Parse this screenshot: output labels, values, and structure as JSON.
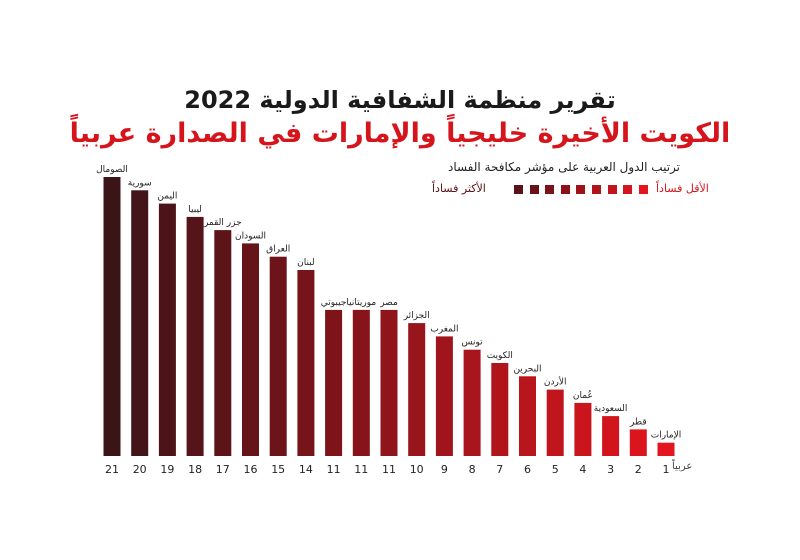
{
  "header": {
    "title_line1": "تقرير منظمة الشفافية الدولية 2022",
    "title_line2": "الكويت الأخيرة خليجياً والإمارات في الصدارة عربياً"
  },
  "legend": {
    "title": "ترتيب الدول العربية على مؤشر مكافحة الفساد",
    "most_corrupt": "الأكثر فساداً",
    "least_corrupt": "الأقل فساداً",
    "swatch_colors": [
      "#5a1118",
      "#6a1118",
      "#7a1218",
      "#8c1219",
      "#9e131a",
      "#b0141b",
      "#c2141c",
      "#d3151d",
      "#e3161e"
    ]
  },
  "colors": {
    "dark": "#3b1418",
    "red": "#e3151e"
  },
  "chart_data": {
    "type": "bar",
    "title": "ترتيب الدول العربية على مؤشر مكافحة الفساد",
    "xlabel": "عربياً",
    "categories": [
      "الصومال",
      "سورية",
      "اليمن",
      "ليبيا",
      "جزر القمر",
      "السودان",
      "العراق",
      "لبنان",
      "جيبوتي",
      "موريتانيا",
      "مصر",
      "الجزائر",
      "المغرب",
      "تونس",
      "الكويت",
      "البحرين",
      "الأردن",
      "عُمان",
      "السعودية",
      "قطر",
      "الإمارات"
    ],
    "values": [
      21,
      20,
      19,
      18,
      17,
      16,
      15,
      14,
      11,
      11,
      11,
      10,
      9,
      8,
      7,
      6,
      5,
      4,
      3,
      2,
      1
    ],
    "ylim": [
      0,
      21
    ],
    "grid": false,
    "legend_position": "top-right"
  }
}
